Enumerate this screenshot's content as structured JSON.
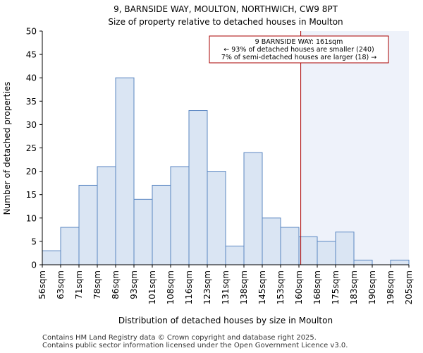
{
  "chart_data": {
    "type": "bar",
    "title": "9, BARNSIDE WAY, MOULTON, NORTHWICH, CW9 8PT",
    "subtitle": "Size of property relative to detached houses in Moulton",
    "xlabel": "Distribution of detached houses by size in Moulton",
    "ylabel": "Number of detached properties",
    "ylim": [
      0,
      50
    ],
    "yticks": [
      0,
      5,
      10,
      15,
      20,
      25,
      30,
      35,
      40,
      45,
      50
    ],
    "tick_labels": [
      "56sqm",
      "63sqm",
      "71sqm",
      "78sqm",
      "86sqm",
      "93sqm",
      "101sqm",
      "108sqm",
      "116sqm",
      "123sqm",
      "131sqm",
      "138sqm",
      "145sqm",
      "153sqm",
      "160sqm",
      "168sqm",
      "175sqm",
      "183sqm",
      "190sqm",
      "198sqm",
      "205sqm"
    ],
    "values": [
      3,
      8,
      17,
      21,
      40,
      14,
      17,
      21,
      33,
      20,
      4,
      24,
      10,
      8,
      6,
      5,
      7,
      1,
      0,
      1
    ],
    "marker": {
      "bin_position": 14.1,
      "color": "#aa0000",
      "label_line1": "9 BARNSIDE WAY: 161sqm",
      "label_line2": "← 93% of detached houses are smaller (240)",
      "label_line3": "7% of semi-detached houses are larger (18) →"
    },
    "colors": {
      "bar_fill": "#dae5f3",
      "bar_stroke": "#5b87c2",
      "highlight_fill": "#eef2fa"
    }
  },
  "footer": {
    "line1": "Contains HM Land Registry data © Crown copyright and database right 2025.",
    "line2": "Contains public sector information licensed under the Open Government Licence v3.0."
  }
}
